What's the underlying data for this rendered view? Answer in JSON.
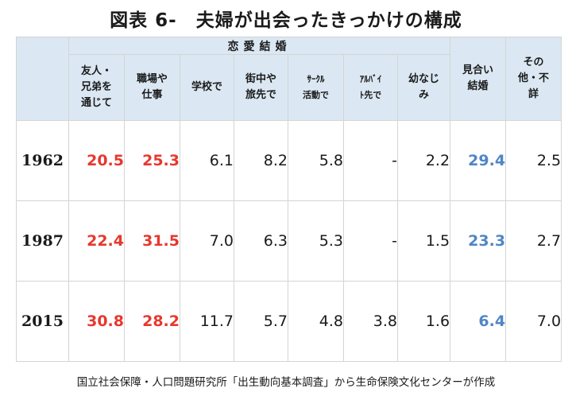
{
  "title": "図表 6-　夫婦が出会ったきっかけの構成",
  "source": "国立社会保障・人口問題研究所「出生動向基本調査」から生命保険文化センターが作成",
  "colors": {
    "highlight_red": "#e8372e",
    "highlight_blue": "#4f86c6",
    "header_bg": "#dbe8f3",
    "grid": "#d4d4d4"
  },
  "chart_data": {
    "type": "table",
    "group_header": "恋愛結婚",
    "columns": [
      {
        "label": "友人・\n兄弟を\n通じて",
        "group": "恋愛結婚",
        "highlight": "red"
      },
      {
        "label": "職場や\n仕事",
        "group": "恋愛結婚",
        "highlight": "red"
      },
      {
        "label": "学校で",
        "group": "恋愛結婚",
        "highlight": ""
      },
      {
        "label": "街中や\n旅先で",
        "group": "恋愛結婚",
        "highlight": ""
      },
      {
        "label": "ｻｰｸﾙ\n活動で",
        "group": "恋愛結婚",
        "highlight": "",
        "small": true
      },
      {
        "label": "ｱﾙﾊﾞｲ\nﾄ先で",
        "group": "恋愛結婚",
        "highlight": "",
        "small": true
      },
      {
        "label": "幼なじ\nみ",
        "group": "恋愛結婚",
        "highlight": ""
      },
      {
        "label": "見合い\n結婚",
        "group": "",
        "highlight": "blue"
      },
      {
        "label": "その\n他・不\n詳",
        "group": "",
        "highlight": ""
      }
    ],
    "rows": [
      {
        "year": "1962",
        "values": [
          "20.5",
          "25.3",
          "6.1",
          "8.2",
          "5.8",
          "-",
          "2.2",
          "29.4",
          "2.5"
        ]
      },
      {
        "year": "1987",
        "values": [
          "22.4",
          "31.5",
          "7.0",
          "6.3",
          "5.3",
          "-",
          "1.5",
          "23.3",
          "2.7"
        ]
      },
      {
        "year": "2015",
        "values": [
          "30.8",
          "28.2",
          "11.7",
          "5.7",
          "4.8",
          "3.8",
          "1.6",
          "6.4",
          "7.0"
        ]
      }
    ]
  }
}
